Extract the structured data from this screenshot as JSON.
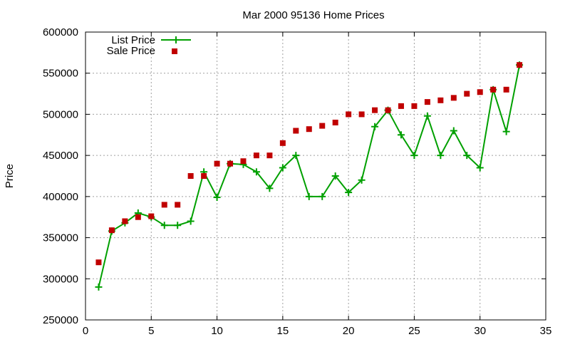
{
  "chart_data": {
    "type": "line",
    "title": "Mar 2000 95136 Home Prices",
    "xlabel": "",
    "ylabel": "Price",
    "xlim": [
      0,
      35
    ],
    "ylim": [
      250000,
      600000
    ],
    "xticks": [
      "0",
      "5",
      "10",
      "15",
      "20",
      "25",
      "30",
      "35"
    ],
    "yticks": [
      "250000",
      "300000",
      "350000",
      "400000",
      "450000",
      "500000",
      "550000",
      "600000"
    ],
    "grid": true,
    "legend_position": "top-left",
    "series": [
      {
        "name": "List Price",
        "style": "line-with-plus-markers",
        "color": "#00a000",
        "x": [
          1,
          2,
          3,
          4,
          5,
          6,
          7,
          8,
          9,
          10,
          11,
          12,
          13,
          14,
          15,
          16,
          17,
          18,
          19,
          20,
          21,
          22,
          23,
          24,
          25,
          26,
          27,
          28,
          29,
          30,
          31,
          32,
          33
        ],
        "values": [
          290000,
          358000,
          368000,
          380000,
          375000,
          365000,
          365000,
          370000,
          430000,
          399000,
          440000,
          439000,
          430000,
          410000,
          435000,
          450000,
          400000,
          400000,
          425000,
          405000,
          420000,
          485000,
          505000,
          475000,
          450000,
          498000,
          450000,
          480000,
          450000,
          435000,
          530000,
          479000,
          560000
        ]
      },
      {
        "name": "Sale Price",
        "style": "square-markers",
        "color": "#c00000",
        "x": [
          1,
          2,
          3,
          4,
          5,
          6,
          7,
          8,
          9,
          10,
          11,
          12,
          13,
          14,
          15,
          16,
          17,
          18,
          19,
          20,
          21,
          22,
          23,
          24,
          25,
          26,
          27,
          28,
          29,
          30,
          31,
          32,
          33
        ],
        "values": [
          320000,
          359000,
          370000,
          375000,
          376000,
          390000,
          390000,
          425000,
          425000,
          440000,
          440000,
          443000,
          450000,
          450000,
          465000,
          480000,
          482000,
          486000,
          490000,
          500000,
          500000,
          505000,
          505000,
          510000,
          510000,
          515000,
          517000,
          520000,
          525000,
          527000,
          530000,
          530000,
          560000
        ]
      }
    ]
  }
}
